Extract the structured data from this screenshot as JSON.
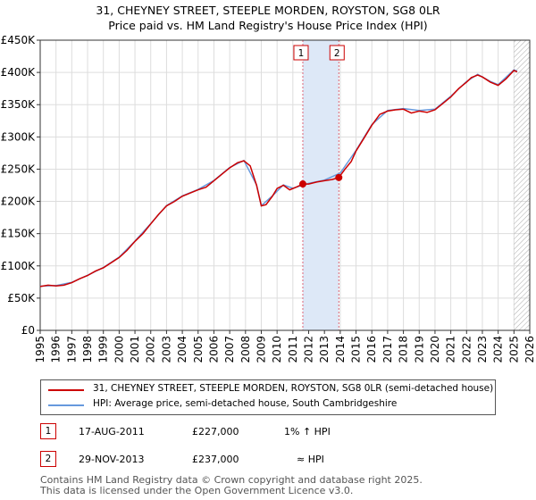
{
  "header": {
    "title": "31, CHEYNEY STREET, STEEPLE MORDEN, ROYSTON, SG8 0LR",
    "subtitle": "Price paid vs. HM Land Registry's House Price Index (HPI)"
  },
  "colors": {
    "property": "#cc0000",
    "hpi": "#6699dd",
    "band": "#dde8f7",
    "marker_line": "#dd6677"
  },
  "chart_data": {
    "type": "line",
    "title": "31, CHEYNEY STREET, STEEPLE MORDEN, ROYSTON, SG8 0LR",
    "subtitle": "Price paid vs. HM Land Registry's House Price Index (HPI)",
    "xlim": [
      1995,
      2026
    ],
    "ylim": [
      0,
      450000
    ],
    "y_ticks": [
      0,
      50000,
      100000,
      150000,
      200000,
      250000,
      300000,
      350000,
      400000,
      450000
    ],
    "y_tick_labels": [
      "£0",
      "£50K",
      "£100K",
      "£150K",
      "£200K",
      "£250K",
      "£300K",
      "£350K",
      "£400K",
      "£450K"
    ],
    "x_ticks": [
      1995,
      1996,
      1997,
      1998,
      1999,
      2000,
      2001,
      2002,
      2003,
      2004,
      2005,
      2006,
      2007,
      2008,
      2009,
      2010,
      2011,
      2012,
      2013,
      2014,
      2015,
      2016,
      2017,
      2018,
      2019,
      2020,
      2021,
      2022,
      2023,
      2024,
      2025,
      2026
    ],
    "x_tick_labels": [
      "1995",
      "1996",
      "1997",
      "1998",
      "1999",
      "2000",
      "2001",
      "2002",
      "2003",
      "2004",
      "2005",
      "2006",
      "2007",
      "2008",
      "2009",
      "2010",
      "2011",
      "2012",
      "2013",
      "2014",
      "2015",
      "2016",
      "2017",
      "2018",
      "2019",
      "2020",
      "2021",
      "2022",
      "2023",
      "2024",
      "2025",
      "2026"
    ],
    "grid": true,
    "shaded_period": [
      2011.63,
      2013.91
    ],
    "hatched_from": 2025.0,
    "series": [
      {
        "name": "31, CHEYNEY STREET, STEEPLE MORDEN, ROYSTON, SG8 0LR (semi-detached house)",
        "x": [
          1995.0,
          1995.5,
          1996.0,
          1996.5,
          1997.0,
          1997.5,
          1998.0,
          1998.5,
          1999.0,
          1999.5,
          2000.0,
          2000.5,
          2001.0,
          2001.5,
          2002.0,
          2002.5,
          2003.0,
          2003.5,
          2004.0,
          2004.5,
          2005.0,
          2005.5,
          2006.0,
          2006.5,
          2007.0,
          2007.5,
          2007.9,
          2008.3,
          2008.7,
          2009.0,
          2009.3,
          2009.7,
          2010.0,
          2010.4,
          2010.8,
          2011.2,
          2011.63,
          2012.0,
          2012.5,
          2013.0,
          2013.5,
          2013.91,
          2014.3,
          2014.7,
          2015.0,
          2015.5,
          2016.0,
          2016.5,
          2017.0,
          2017.5,
          2018.0,
          2018.5,
          2019.0,
          2019.5,
          2020.0,
          2020.5,
          2021.0,
          2021.5,
          2022.0,
          2022.3,
          2022.7,
          2023.0,
          2023.5,
          2024.0,
          2024.5,
          2025.0,
          2025.2
        ],
        "y": [
          68000,
          70000,
          69000,
          70000,
          74000,
          80000,
          85000,
          92000,
          97000,
          105000,
          113000,
          124000,
          138000,
          150000,
          165000,
          180000,
          193000,
          200000,
          208000,
          213000,
          218000,
          222000,
          232000,
          242000,
          252000,
          260000,
          263000,
          255000,
          225000,
          193000,
          195000,
          208000,
          220000,
          225000,
          218000,
          222000,
          227000,
          227000,
          230000,
          232000,
          234000,
          237000,
          250000,
          262000,
          278000,
          298000,
          318000,
          335000,
          340000,
          342000,
          343000,
          337000,
          340000,
          338000,
          342000,
          352000,
          362000,
          375000,
          385000,
          392000,
          396000,
          393000,
          385000,
          380000,
          390000,
          403000,
          401000
        ]
      },
      {
        "name": "HPI: Average price, semi-detached house, South Cambridgeshire",
        "x": [
          1995.0,
          1996.0,
          1997.0,
          1998.0,
          1999.0,
          2000.0,
          2001.0,
          2002.0,
          2003.0,
          2004.0,
          2005.0,
          2006.0,
          2007.0,
          2007.9,
          2008.7,
          2009.0,
          2009.7,
          2010.4,
          2011.0,
          2012.0,
          2013.0,
          2014.0,
          2015.0,
          2016.0,
          2017.0,
          2018.0,
          2019.0,
          2020.0,
          2021.0,
          2022.0,
          2022.7,
          2023.5,
          2024.0,
          2025.0,
          2025.2
        ],
        "y": [
          68500,
          69500,
          74500,
          85500,
          97500,
          113500,
          138500,
          165500,
          193500,
          208500,
          218500,
          232500,
          252500,
          263500,
          225500,
          193500,
          208500,
          225500,
          220500,
          228000,
          233000,
          244000,
          279000,
          319000,
          341000,
          344000,
          341000,
          343000,
          363000,
          386000,
          397000,
          386000,
          381000,
          404000,
          402000
        ]
      }
    ],
    "transactions": [
      {
        "label": "1",
        "x": 2011.63,
        "y": 227000,
        "date": "17-AUG-2011",
        "price": "£227,000",
        "hpi": "1% ↑ HPI"
      },
      {
        "label": "2",
        "x": 2013.91,
        "y": 237000,
        "date": "29-NOV-2013",
        "price": "£237,000",
        "hpi": "≈ HPI"
      }
    ]
  },
  "legend": {
    "property": "31, CHEYNEY STREET, STEEPLE MORDEN, ROYSTON, SG8 0LR (semi-detached house)",
    "hpi": "HPI: Average price, semi-detached house, South Cambridgeshire"
  },
  "footer": {
    "line1": "Contains HM Land Registry data © Crown copyright and database right 2025.",
    "line2": "This data is licensed under the Open Government Licence v3.0."
  }
}
